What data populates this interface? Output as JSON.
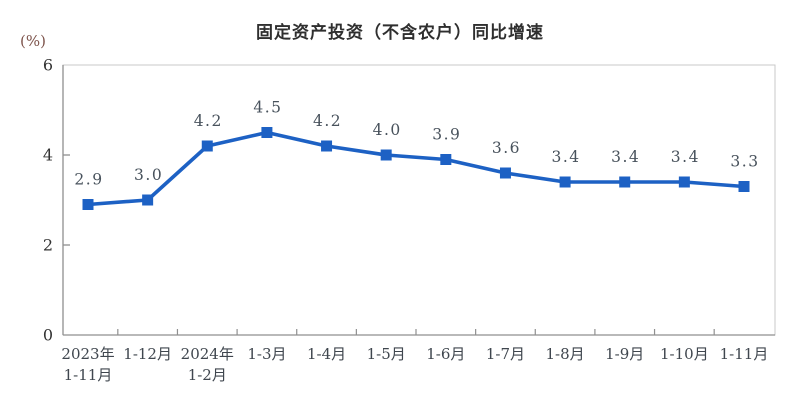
{
  "title": "固定资产投资（不含农户）同比增速",
  "unit_label": "(%)",
  "colors": {
    "line": "#1d61c4",
    "marker": "#1d61c4",
    "data_label": "#48525c",
    "category_label": "#3f464e",
    "tick_label": "#333333",
    "title": "#2f2f2f",
    "unit_label": "#7d534b",
    "axis_line": "#8f8f8f",
    "border": "#c9c9c9"
  },
  "chart_data": {
    "type": "line",
    "title": "固定资产投资（不含农户）同比增速",
    "xlabel": "",
    "ylabel": "(%)",
    "categories": [
      "2023年\n1-11月",
      "1-12月",
      "2024年\n1-2月",
      "1-3月",
      "1-4月",
      "1-5月",
      "1-6月",
      "1-7月",
      "1-8月",
      "1-9月",
      "1-10月",
      "1-11月"
    ],
    "values": [
      2.9,
      3.0,
      4.2,
      4.5,
      4.2,
      4.0,
      3.9,
      3.6,
      3.4,
      3.4,
      3.4,
      3.3
    ],
    "data_labels": [
      "2.9",
      "3.0",
      "4.2",
      "4.5",
      "4.2",
      "4.0",
      "3.9",
      "3.6",
      "3.4",
      "3.4",
      "3.4",
      "3.3"
    ],
    "ylim": [
      0,
      6
    ],
    "yticks": [
      0,
      2,
      4,
      6
    ],
    "grid": false,
    "legend": "none",
    "marker": "square"
  }
}
